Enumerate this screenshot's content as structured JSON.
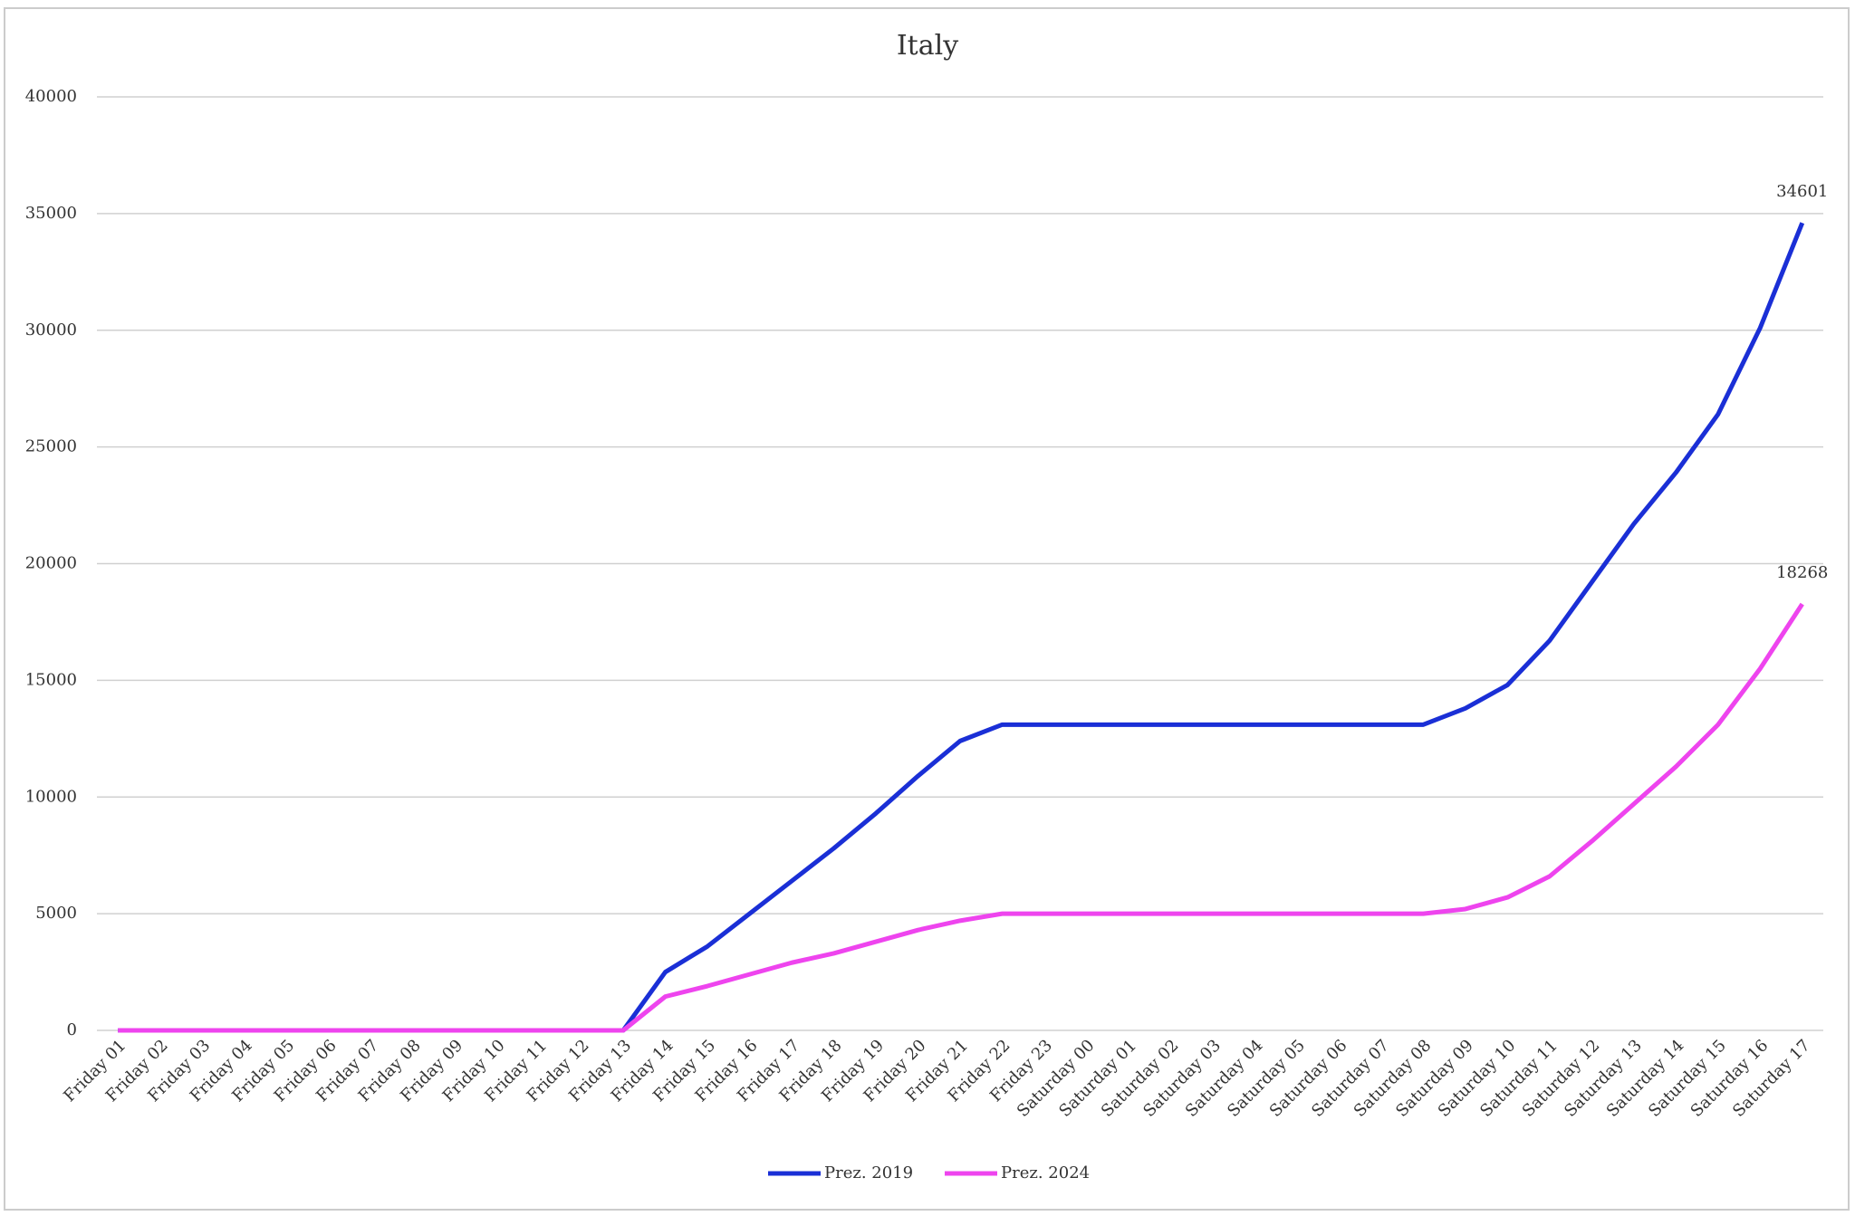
{
  "chart_data": {
    "type": "line",
    "title": "Italy",
    "categories": [
      "Friday 01",
      "Friday 02",
      "Friday 03",
      "Friday 04",
      "Friday 05",
      "Friday 06",
      "Friday 07",
      "Friday 08",
      "Friday 09",
      "Friday 10",
      "Friday 11",
      "Friday 12",
      "Friday 13",
      "Friday 14",
      "Friday 15",
      "Friday 16",
      "Friday 17",
      "Friday 18",
      "Friday 19",
      "Friday 20",
      "Friday 21",
      "Friday 22",
      "Friday 23",
      "Saturday 00",
      "Saturday 01",
      "Saturday 02",
      "Saturday 03",
      "Saturday 04",
      "Saturday 05",
      "Saturday 06",
      "Saturday 07",
      "Saturday 08",
      "Saturday 09",
      "Saturday 10",
      "Saturday 11",
      "Saturday 12",
      "Saturday 13",
      "Saturday 14",
      "Saturday 15",
      "Saturday 16",
      "Saturday 17"
    ],
    "series": [
      {
        "name": "Prez. 2019",
        "color": "#1a2fd6",
        "values": [
          0,
          0,
          0,
          0,
          0,
          0,
          0,
          0,
          0,
          0,
          0,
          0,
          0,
          2500,
          3600,
          5000,
          6400,
          7800,
          9300,
          10900,
          12400,
          13100,
          13100,
          13100,
          13100,
          13100,
          13100,
          13100,
          13100,
          13100,
          13100,
          13100,
          13800,
          14800,
          16700,
          19200,
          21700,
          23900,
          26400,
          30100,
          34601
        ]
      },
      {
        "name": "Prez. 2024",
        "color": "#ee44ee",
        "values": [
          0,
          0,
          0,
          0,
          0,
          0,
          0,
          0,
          0,
          0,
          0,
          0,
          0,
          1450,
          1900,
          2400,
          2900,
          3300,
          3800,
          4300,
          4700,
          5000,
          5000,
          5000,
          5000,
          5000,
          5000,
          5000,
          5000,
          5000,
          5000,
          5000,
          5200,
          5700,
          6600,
          8100,
          9700,
          11300,
          13100,
          15500,
          18268
        ]
      }
    ],
    "ylim": [
      0,
      40000
    ],
    "yticks": [
      0,
      5000,
      10000,
      15000,
      20000,
      25000,
      30000,
      35000,
      40000
    ],
    "grid": true,
    "legend": "bottom"
  }
}
